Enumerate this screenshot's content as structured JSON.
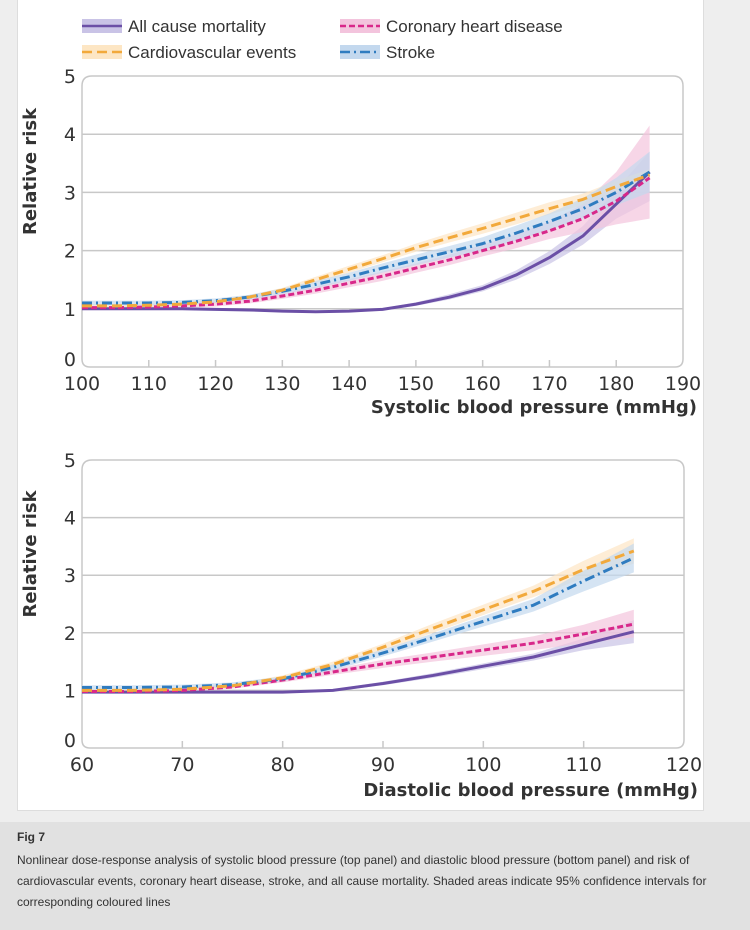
{
  "legend": [
    {
      "name": "All cause mortality",
      "color": "#6b4fa6",
      "band": "#c9c3e6",
      "dash": ""
    },
    {
      "name": "Coronary heart disease",
      "color": "#d8288a",
      "band": "#f3c4dd",
      "dash": "6,3"
    },
    {
      "name": "Cardiovascular events",
      "color": "#f2a93b",
      "band": "#fde6c4",
      "dash": "10,5"
    },
    {
      "name": "Stroke",
      "color": "#2f7cc0",
      "band": "#c3d8ee",
      "dash": "10,4,2,4"
    }
  ],
  "chart_data": [
    {
      "type": "line",
      "xlabel": "Systolic blood pressure (mmHg)",
      "ylabel": "Relative risk",
      "xlim": [
        100,
        190
      ],
      "ylim": [
        0,
        5
      ],
      "xticks": [
        100,
        110,
        120,
        130,
        140,
        150,
        160,
        170,
        180,
        190
      ],
      "yticks": [
        0,
        1,
        2,
        3,
        4,
        5
      ],
      "grid": "horizontal",
      "x": [
        100,
        105,
        110,
        115,
        120,
        125,
        130,
        135,
        140,
        145,
        150,
        155,
        160,
        165,
        170,
        175,
        180,
        185
      ],
      "series": [
        {
          "name": "All cause mortality",
          "values": [
            1.0,
            1.0,
            1.0,
            1.0,
            0.99,
            0.98,
            0.96,
            0.95,
            0.96,
            0.99,
            1.08,
            1.2,
            1.35,
            1.58,
            1.88,
            2.25,
            2.8,
            3.35
          ],
          "ci_lower": [
            0.98,
            0.98,
            0.98,
            0.98,
            0.97,
            0.96,
            0.94,
            0.93,
            0.94,
            0.97,
            1.05,
            1.16,
            1.3,
            1.5,
            1.77,
            2.1,
            2.55,
            2.85
          ],
          "ci_upper": [
            1.02,
            1.02,
            1.02,
            1.02,
            1.01,
            1.0,
            0.98,
            0.97,
            0.98,
            1.01,
            1.11,
            1.25,
            1.41,
            1.66,
            1.99,
            2.42,
            3.05,
            3.7
          ]
        },
        {
          "name": "Coronary heart disease",
          "values": [
            1.02,
            1.02,
            1.03,
            1.05,
            1.08,
            1.13,
            1.22,
            1.32,
            1.44,
            1.56,
            1.7,
            1.84,
            2.0,
            2.16,
            2.34,
            2.55,
            2.85,
            3.25
          ],
          "ci_lower": [
            0.99,
            0.99,
            1.0,
            1.02,
            1.04,
            1.09,
            1.17,
            1.26,
            1.37,
            1.48,
            1.62,
            1.75,
            1.9,
            2.04,
            2.2,
            2.32,
            2.45,
            2.55
          ],
          "ci_upper": [
            1.05,
            1.05,
            1.06,
            1.08,
            1.12,
            1.17,
            1.27,
            1.38,
            1.51,
            1.64,
            1.78,
            1.93,
            2.1,
            2.28,
            2.5,
            2.8,
            3.35,
            4.15
          ]
        },
        {
          "name": "Cardiovascular events",
          "values": [
            1.05,
            1.05,
            1.06,
            1.08,
            1.12,
            1.2,
            1.32,
            1.5,
            1.68,
            1.86,
            2.05,
            2.22,
            2.38,
            2.55,
            2.72,
            2.88,
            3.1,
            3.3
          ],
          "ci_lower": [
            1.02,
            1.02,
            1.03,
            1.05,
            1.09,
            1.17,
            1.28,
            1.45,
            1.62,
            1.8,
            1.98,
            2.14,
            2.29,
            2.45,
            2.62,
            2.78,
            3.0,
            3.2
          ],
          "ci_upper": [
            1.08,
            1.08,
            1.09,
            1.11,
            1.15,
            1.23,
            1.36,
            1.55,
            1.74,
            1.92,
            2.12,
            2.3,
            2.47,
            2.65,
            2.83,
            2.98,
            3.2,
            3.4
          ]
        },
        {
          "name": "Stroke",
          "values": [
            1.1,
            1.1,
            1.1,
            1.11,
            1.14,
            1.2,
            1.3,
            1.42,
            1.55,
            1.7,
            1.84,
            1.98,
            2.12,
            2.3,
            2.5,
            2.72,
            3.0,
            3.35
          ],
          "ci_lower": [
            1.06,
            1.06,
            1.06,
            1.07,
            1.1,
            1.16,
            1.25,
            1.36,
            1.48,
            1.62,
            1.75,
            1.88,
            2.01,
            2.17,
            2.36,
            2.55,
            2.78,
            3.0
          ],
          "ci_upper": [
            1.14,
            1.14,
            1.14,
            1.15,
            1.18,
            1.24,
            1.35,
            1.48,
            1.62,
            1.78,
            1.93,
            2.08,
            2.23,
            2.43,
            2.64,
            2.9,
            3.25,
            3.7
          ]
        }
      ]
    },
    {
      "type": "line",
      "xlabel": "Diastolic blood pressure (mmHg)",
      "ylabel": "Relative risk",
      "xlim": [
        60,
        120
      ],
      "ylim": [
        0,
        5
      ],
      "xticks": [
        60,
        70,
        80,
        90,
        100,
        110,
        120
      ],
      "yticks": [
        0,
        1,
        2,
        3,
        4,
        5
      ],
      "grid": "horizontal",
      "x": [
        60,
        65,
        70,
        75,
        80,
        85,
        90,
        95,
        100,
        105,
        110,
        115
      ],
      "series": [
        {
          "name": "All cause mortality",
          "values": [
            0.97,
            0.97,
            0.97,
            0.97,
            0.97,
            1.0,
            1.12,
            1.26,
            1.42,
            1.58,
            1.8,
            2.02
          ],
          "ci_lower": [
            0.95,
            0.95,
            0.95,
            0.95,
            0.95,
            0.98,
            1.09,
            1.22,
            1.37,
            1.52,
            1.7,
            1.82
          ],
          "ci_upper": [
            0.99,
            0.99,
            0.99,
            0.99,
            0.99,
            1.02,
            1.15,
            1.3,
            1.47,
            1.64,
            1.9,
            2.22
          ]
        },
        {
          "name": "Coronary heart disease",
          "values": [
            0.98,
            0.98,
            1.0,
            1.06,
            1.18,
            1.32,
            1.46,
            1.58,
            1.7,
            1.82,
            1.98,
            2.15
          ],
          "ci_lower": [
            0.95,
            0.95,
            0.97,
            1.03,
            1.14,
            1.27,
            1.39,
            1.5,
            1.6,
            1.7,
            1.82,
            1.92
          ],
          "ci_upper": [
            1.01,
            1.01,
            1.03,
            1.09,
            1.22,
            1.37,
            1.53,
            1.66,
            1.8,
            1.94,
            2.14,
            2.4
          ]
        },
        {
          "name": "Cardiovascular events",
          "values": [
            1.0,
            1.0,
            1.02,
            1.08,
            1.22,
            1.45,
            1.75,
            2.08,
            2.4,
            2.72,
            3.1,
            3.42
          ],
          "ci_lower": [
            0.97,
            0.97,
            0.99,
            1.05,
            1.18,
            1.4,
            1.69,
            2.0,
            2.31,
            2.62,
            2.95,
            3.2
          ],
          "ci_upper": [
            1.03,
            1.03,
            1.05,
            1.11,
            1.26,
            1.5,
            1.81,
            2.16,
            2.49,
            2.82,
            3.25,
            3.64
          ]
        },
        {
          "name": "Stroke",
          "values": [
            1.05,
            1.05,
            1.06,
            1.1,
            1.2,
            1.4,
            1.65,
            1.92,
            2.2,
            2.48,
            2.9,
            3.3
          ],
          "ci_lower": [
            1.01,
            1.01,
            1.02,
            1.06,
            1.16,
            1.35,
            1.59,
            1.85,
            2.11,
            2.37,
            2.72,
            3.05
          ],
          "ci_upper": [
            1.09,
            1.09,
            1.1,
            1.14,
            1.24,
            1.45,
            1.71,
            1.99,
            2.29,
            2.59,
            3.08,
            3.55
          ]
        }
      ]
    }
  ],
  "caption": {
    "title": "Fig 7",
    "text": "Nonlinear dose-response analysis of systolic blood pressure (top panel) and diastolic blood pressure (bottom panel) and risk of cardiovascular events, coronary heart disease, stroke, and all cause mortality. Shaded areas indicate 95% confidence intervals for corresponding coloured lines"
  }
}
